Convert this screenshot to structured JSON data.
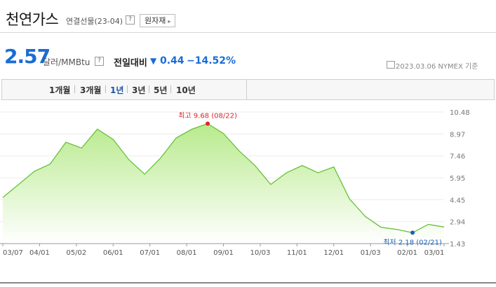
{
  "header": {
    "title": "천연가스",
    "subtitle": "연결선물(23-04)",
    "help_icon": "?",
    "raw_button": "원자재",
    "raw_button_arrow": "▸"
  },
  "quote": {
    "price": "2.57",
    "unit": "달러/MMBtu",
    "change_label": "전일대비",
    "change_arrow": "▼",
    "change_value": "0.44",
    "change_percent": "−14.52%",
    "date_info": "2023.03.06  NYMEX 기준"
  },
  "tabs": [
    {
      "label": "1개월",
      "active": false
    },
    {
      "label": "3개월",
      "active": false
    },
    {
      "label": "1년",
      "active": true
    },
    {
      "label": "3년",
      "active": false
    },
    {
      "label": "5년",
      "active": false
    },
    {
      "label": "10년",
      "active": false
    }
  ],
  "chart_data": {
    "type": "area",
    "x": [
      "03/07",
      "03/21",
      "04/01",
      "04/15",
      "05/02",
      "05/16",
      "06/01",
      "06/08",
      "06/15",
      "07/01",
      "07/15",
      "08/01",
      "08/15",
      "08/22",
      "09/01",
      "09/15",
      "10/03",
      "10/17",
      "11/01",
      "11/15",
      "12/01",
      "12/15",
      "01/03",
      "01/17",
      "02/01",
      "02/15",
      "02/21",
      "03/01",
      "03/06"
    ],
    "values": [
      4.6,
      5.5,
      6.4,
      6.9,
      8.4,
      8.0,
      9.3,
      8.6,
      7.2,
      6.2,
      7.3,
      8.7,
      9.3,
      9.68,
      9.0,
      7.8,
      6.8,
      5.5,
      6.3,
      6.8,
      6.3,
      6.7,
      4.5,
      3.3,
      2.55,
      2.4,
      2.18,
      2.75,
      2.57
    ],
    "x_ticks": [
      "03/07",
      "04/01",
      "05/02",
      "06/01",
      "07/01",
      "08/01",
      "09/01",
      "10/03",
      "11/01",
      "12/01",
      "01/03",
      "02/01",
      "03/01"
    ],
    "y_ticks": [
      "10.48",
      "8.97",
      "7.46",
      "5.95",
      "4.45",
      "2.94",
      "1.43"
    ],
    "ylim": [
      1.43,
      10.48
    ],
    "max_label": "최고 9.68 (08/22)",
    "min_label": "최저 2.18 (02/21)",
    "max_index": 13,
    "min_index": 26,
    "line_color": "#66c23a",
    "fill_top_color": "#b8ea8c",
    "fill_bottom_color": "#ffffff",
    "max_marker_color": "#e0242b",
    "min_marker_color": "#1f5fb8"
  }
}
